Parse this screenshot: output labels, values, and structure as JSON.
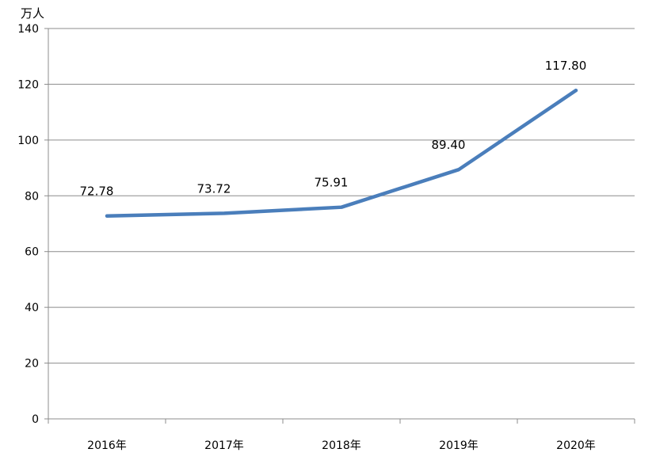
{
  "chart_data": {
    "type": "line",
    "title": "",
    "xlabel": "",
    "ylabel": "万人",
    "categories": [
      "2016年",
      "2017年",
      "2018年",
      "2019年",
      "2020年"
    ],
    "series": [
      {
        "values": [
          72.78,
          73.72,
          75.91,
          89.4,
          117.8
        ],
        "labels": [
          "72.78",
          "73.72",
          "75.91",
          "89.40",
          "117.80"
        ],
        "color": "#4a7ebb"
      }
    ],
    "ylim": [
      0,
      140
    ],
    "yticks": [
      0,
      20,
      40,
      60,
      80,
      100,
      120,
      140
    ],
    "grid": true,
    "legend": "none"
  },
  "colors": {
    "gridline": "#8c8c8c",
    "axis": "#8c8c8c",
    "text": "#000000"
  }
}
